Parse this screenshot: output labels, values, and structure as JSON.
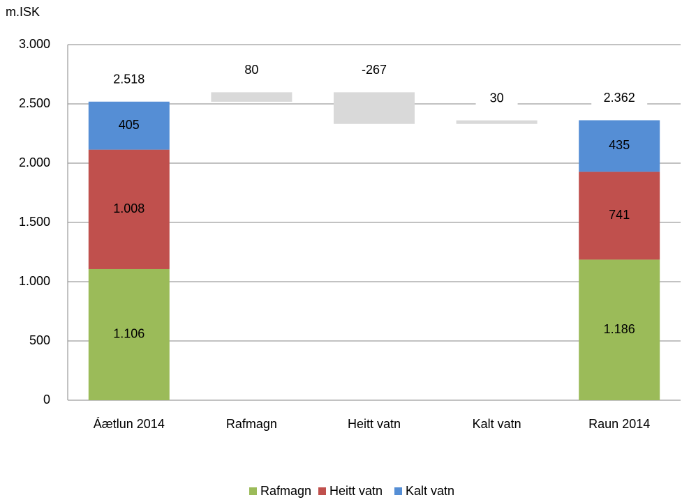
{
  "chart_data": {
    "type": "waterfall",
    "ylabel": "m.ISK",
    "categories": [
      "Áætlun 2014",
      "Rafmagn",
      "Heitt vatn",
      "Kalt vatn",
      "Raun 2014"
    ],
    "series": [
      {
        "name": "Rafmagn",
        "color": "#9bbb59",
        "values": [
          1106,
          null,
          null,
          null,
          1186
        ],
        "value_labels": [
          "1.106",
          null,
          null,
          null,
          "1.186"
        ]
      },
      {
        "name": "Heitt vatn",
        "color": "#c0504d",
        "values": [
          1008,
          null,
          null,
          null,
          741
        ],
        "value_labels": [
          "1.008",
          null,
          null,
          null,
          "741"
        ]
      },
      {
        "name": "Kalt vatn",
        "color": "#558ed5",
        "values": [
          405,
          null,
          null,
          null,
          435
        ],
        "value_labels": [
          "405",
          null,
          null,
          null,
          "435"
        ]
      }
    ],
    "totals": {
      "values": [
        2518,
        null,
        null,
        null,
        2362
      ],
      "value_labels": [
        "2.518",
        null,
        null,
        null,
        "2.362"
      ]
    },
    "changes": {
      "color": "#d9d9d9",
      "values": [
        null,
        80,
        -267,
        30,
        null
      ]
    },
    "ylim": [
      0,
      3000
    ],
    "yticks": [
      0,
      500,
      {
        "value": 1000,
        "label": "1.000"
      },
      {
        "value": 1500,
        "label": "1.500"
      },
      {
        "value": 2000,
        "label": "2.000"
      },
      {
        "value": 2500,
        "label": "2.500"
      },
      {
        "value": 3000,
        "label": "3.000"
      }
    ],
    "grid": true,
    "legend": "bottom"
  }
}
